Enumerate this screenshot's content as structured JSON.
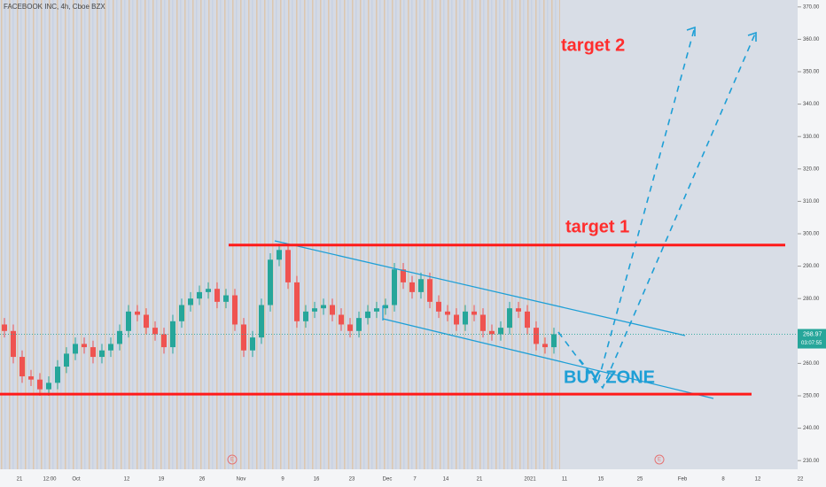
{
  "chart_data": {
    "type": "candlestick",
    "title": "FACEBOOK INC, 4h, Cboe BZX",
    "open": [
      272,
      270,
      262,
      256,
      255,
      252,
      254,
      259,
      263,
      266,
      265,
      262,
      264,
      266,
      270,
      276,
      275,
      271,
      269,
      265,
      273,
      278,
      280,
      282,
      283,
      279,
      281,
      272,
      264,
      268,
      278,
      292,
      295,
      285,
      273,
      276,
      277,
      278,
      275,
      272,
      270,
      274,
      276,
      277,
      278,
      289,
      285,
      282,
      286,
      279,
      276,
      275,
      272,
      276,
      275,
      270,
      269,
      271,
      277,
      276,
      271,
      266,
      265
    ],
    "high": [
      274,
      272,
      264,
      258,
      257,
      256,
      261,
      265,
      268,
      268,
      267,
      266,
      268,
      272,
      278,
      278,
      277,
      273,
      271,
      275,
      280,
      282,
      284,
      285,
      285,
      283,
      283,
      274,
      270,
      280,
      294,
      297,
      297,
      287,
      278,
      279,
      280,
      280,
      277,
      274,
      276,
      278,
      279,
      280,
      291,
      291,
      287,
      288,
      288,
      281,
      278,
      277,
      278,
      278,
      277,
      272,
      273,
      279,
      279,
      278,
      273,
      268,
      271
    ],
    "low": [
      268,
      260,
      254,
      253,
      250,
      250,
      252,
      257,
      261,
      263,
      260,
      260,
      262,
      264,
      268,
      273,
      269,
      267,
      263,
      263,
      271,
      276,
      278,
      280,
      277,
      277,
      270,
      262,
      262,
      266,
      276,
      290,
      283,
      271,
      271,
      274,
      275,
      273,
      270,
      268,
      268,
      272,
      274,
      275,
      276,
      283,
      280,
      280,
      277,
      274,
      273,
      270,
      270,
      273,
      268,
      267,
      267,
      269,
      274,
      269,
      264,
      263,
      263
    ],
    "close": [
      270,
      262,
      256,
      255,
      252,
      254,
      259,
      263,
      266,
      265,
      262,
      264,
      266,
      270,
      276,
      275,
      271,
      269,
      265,
      273,
      278,
      280,
      282,
      283,
      279,
      281,
      272,
      264,
      268,
      278,
      292,
      295,
      285,
      273,
      276,
      277,
      278,
      275,
      272,
      270,
      274,
      276,
      277,
      278,
      289,
      285,
      282,
      286,
      279,
      276,
      275,
      272,
      276,
      275,
      270,
      269,
      271,
      277,
      276,
      271,
      266,
      265,
      269
    ],
    "up_color": "#26a69a",
    "down_color": "#ef5350",
    "ylim": [
      228,
      372
    ],
    "yticks": [
      {
        "value": 230,
        "label": "230.00"
      },
      {
        "value": 240,
        "label": "240.00"
      },
      {
        "value": 250,
        "label": "250.00"
      },
      {
        "value": 260,
        "label": "260.00"
      },
      {
        "value": 280,
        "label": "280.00"
      },
      {
        "value": 290,
        "label": "290.00"
      },
      {
        "value": 300,
        "label": "300.00"
      },
      {
        "value": 310,
        "label": "310.00"
      },
      {
        "value": 320,
        "label": "320.00"
      },
      {
        "value": 330,
        "label": "330.00"
      },
      {
        "value": 340,
        "label": "340.00"
      },
      {
        "value": 350,
        "label": "350.00"
      },
      {
        "value": 360,
        "label": "360.00"
      },
      {
        "value": 370,
        "label": "370.00"
      }
    ],
    "x_labels": [
      "21",
      "12:00",
      "Oct",
      "12",
      "19",
      "26",
      "Nov",
      "9",
      "16",
      "23",
      "Dec",
      "7",
      "14",
      "21",
      "2021",
      "11",
      "15",
      "25",
      "Feb",
      "8",
      "12",
      "22"
    ],
    "last_price": {
      "value": 268.97,
      "label": "268.97",
      "countdown": "03:07:55"
    },
    "levels": [
      {
        "value": 296.5,
        "color": "#ff1a1a"
      },
      {
        "value": 250.5,
        "color": "#ff1a1a"
      }
    ],
    "annotations": [
      "target 2",
      "target 1",
      "BUY ZONE"
    ],
    "events": [
      "E",
      "E"
    ]
  }
}
